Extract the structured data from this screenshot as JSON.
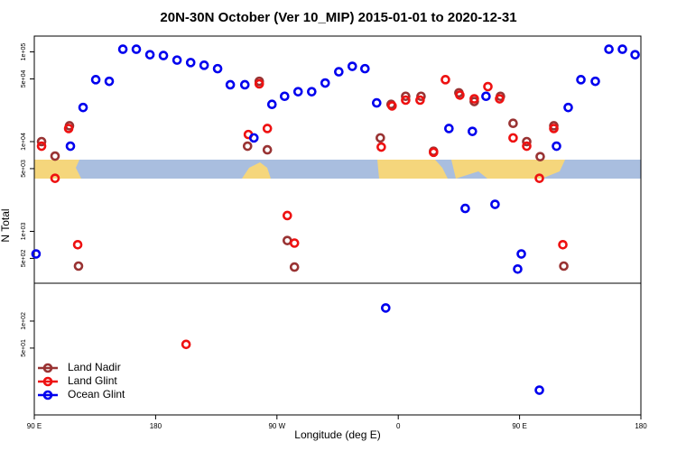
{
  "chart_data": {
    "type": "scatter",
    "title": "20N-30N October (Ver 10_MIP)   2015-01-01 to 2020-12-31",
    "xlabel": "Longitude (deg E)",
    "ylabel": "N Total",
    "xlim": [
      90,
      540
    ],
    "xticks": [
      {
        "value": 90,
        "label": "90 E"
      },
      180,
      {
        "value": 270,
        "label": "90 W"
      },
      {
        "value": 360,
        "label": "0"
      },
      {
        "value": 450,
        "label": "90 E"
      },
      {
        "value": 540,
        "label": "180"
      }
    ],
    "ylim": [
      9,
      150000
    ],
    "ylog": true,
    "yticks": [
      {
        "value": 100000,
        "label": "1e+05"
      },
      {
        "value": 50000,
        "label": "5e+04"
      },
      {
        "value": 10000,
        "label": "1e+04"
      },
      {
        "value": 5000,
        "label": "5e+03"
      },
      {
        "value": 1000,
        "label": "1e+03"
      },
      {
        "value": 500,
        "label": "5e+02"
      },
      {
        "value": 100,
        "label": "1e+02"
      },
      {
        "value": 50,
        "label": "5e+01"
      }
    ],
    "legend": "bottom-left",
    "series": [
      {
        "name": "Land Nadir",
        "color": "#993333",
        "x": [
          95.4,
          105.4,
          116.1,
          122.8,
          248.2,
          256.9,
          262.9,
          277.7,
          283,
          346.7,
          354.7,
          365.5,
          376.9,
          386.2,
          405,
          416.4,
          435.8,
          445.2,
          455.3,
          465.3,
          475.4,
          482.8
        ],
        "values": [
          10000,
          6900,
          15000,
          410,
          8900,
          47000,
          8100,
          790,
          400,
          11000,
          26000,
          32000,
          32000,
          7800,
          35000,
          28000,
          32000,
          16000,
          10000,
          6800,
          15000,
          410
        ]
      },
      {
        "name": "Land Glint",
        "color": "#ee1111",
        "x": [
          95.4,
          105.4,
          115.5,
          122.2,
          202.6,
          248.8,
          256.9,
          262.9,
          277.7,
          283,
          347.4,
          355.4,
          365.5,
          376.2,
          386.2,
          395,
          405.7,
          416.4,
          426.5,
          435.2,
          445.2,
          455.3,
          464.7,
          475.4,
          482.1
        ],
        "values": [
          8900,
          3900,
          14000,
          710,
          55,
          12000,
          44000,
          14000,
          1500,
          740,
          8700,
          25000,
          29000,
          29000,
          7600,
          49000,
          33000,
          30000,
          41000,
          30000,
          11000,
          8900,
          3900,
          14000,
          710
        ]
      },
      {
        "name": "Ocean Glint",
        "color": "#0000ee",
        "x": [
          91.3,
          116.8,
          126.2,
          135.6,
          145.6,
          155.7,
          165.7,
          175.8,
          185.8,
          195.9,
          206,
          216,
          226,
          235.4,
          246.2,
          252.9,
          266.3,
          275.7,
          285.7,
          295.8,
          305.8,
          315.9,
          325.9,
          335.3,
          344,
          350.7,
          397.6,
          409.7,
          415,
          425.1,
          431.8,
          448.6,
          451.3,
          464.7,
          477.4,
          486.1,
          495.5,
          506.2,
          516.3,
          526.3,
          535.7
        ],
        "values": [
          560,
          8900,
          24000,
          49000,
          47000,
          107000,
          107000,
          93000,
          91000,
          81000,
          76000,
          71000,
          65000,
          43000,
          43000,
          11000,
          26000,
          32000,
          36000,
          36000,
          45000,
          60000,
          69000,
          65000,
          27000,
          140,
          14000,
          1800,
          13000,
          32000,
          2000,
          380,
          560,
          17,
          8900,
          24000,
          49000,
          47000,
          107000,
          107000,
          93000
        ]
      }
    ]
  }
}
